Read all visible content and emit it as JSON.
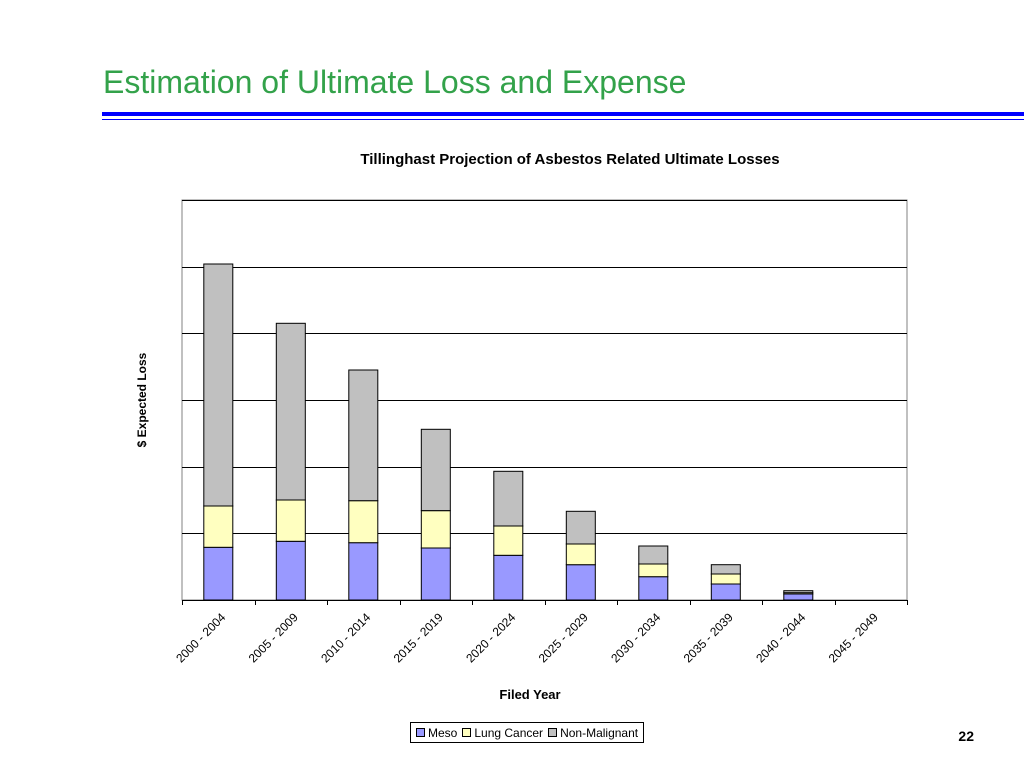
{
  "slide": {
    "title": "Estimation of Ultimate Loss and Expense",
    "page_number": "22",
    "accent_color": "#33a24a",
    "rule_color": "#0000ff"
  },
  "chart_data": {
    "type": "bar",
    "stacked": true,
    "title": "Tillinghast Projection of Asbestos Related Ultimate Losses",
    "xlabel": "Filed Year",
    "ylabel": "$ Expected Loss",
    "categories": [
      "2000 - 2004",
      "2005 - 2009",
      "2010 - 2014",
      "2015 - 2019",
      "2020 - 2024",
      "2025 - 2029",
      "2030 - 2034",
      "2035 - 2039",
      "2040 - 2044",
      "2045 - 2049"
    ],
    "series": [
      {
        "name": "Meso",
        "color": "#9999ff",
        "values": [
          0.79,
          0.88,
          0.86,
          0.78,
          0.67,
          0.53,
          0.35,
          0.24,
          0.09,
          0.0
        ]
      },
      {
        "name": "Lung Cancer",
        "color": "#ffffc0",
        "values": [
          0.62,
          0.62,
          0.63,
          0.56,
          0.44,
          0.31,
          0.19,
          0.15,
          0.02,
          0.0
        ]
      },
      {
        "name": "Non-Malignant",
        "color": "#c0c0c0",
        "values": [
          3.63,
          2.65,
          1.96,
          1.22,
          0.82,
          0.49,
          0.27,
          0.14,
          0.03,
          0.0
        ]
      }
    ],
    "ylim": [
      0,
      6
    ],
    "y_gridlines": [
      1,
      2,
      3,
      4,
      5,
      6
    ],
    "y_tick_labels_shown": false,
    "grid": true,
    "legend_position": "bottom"
  }
}
